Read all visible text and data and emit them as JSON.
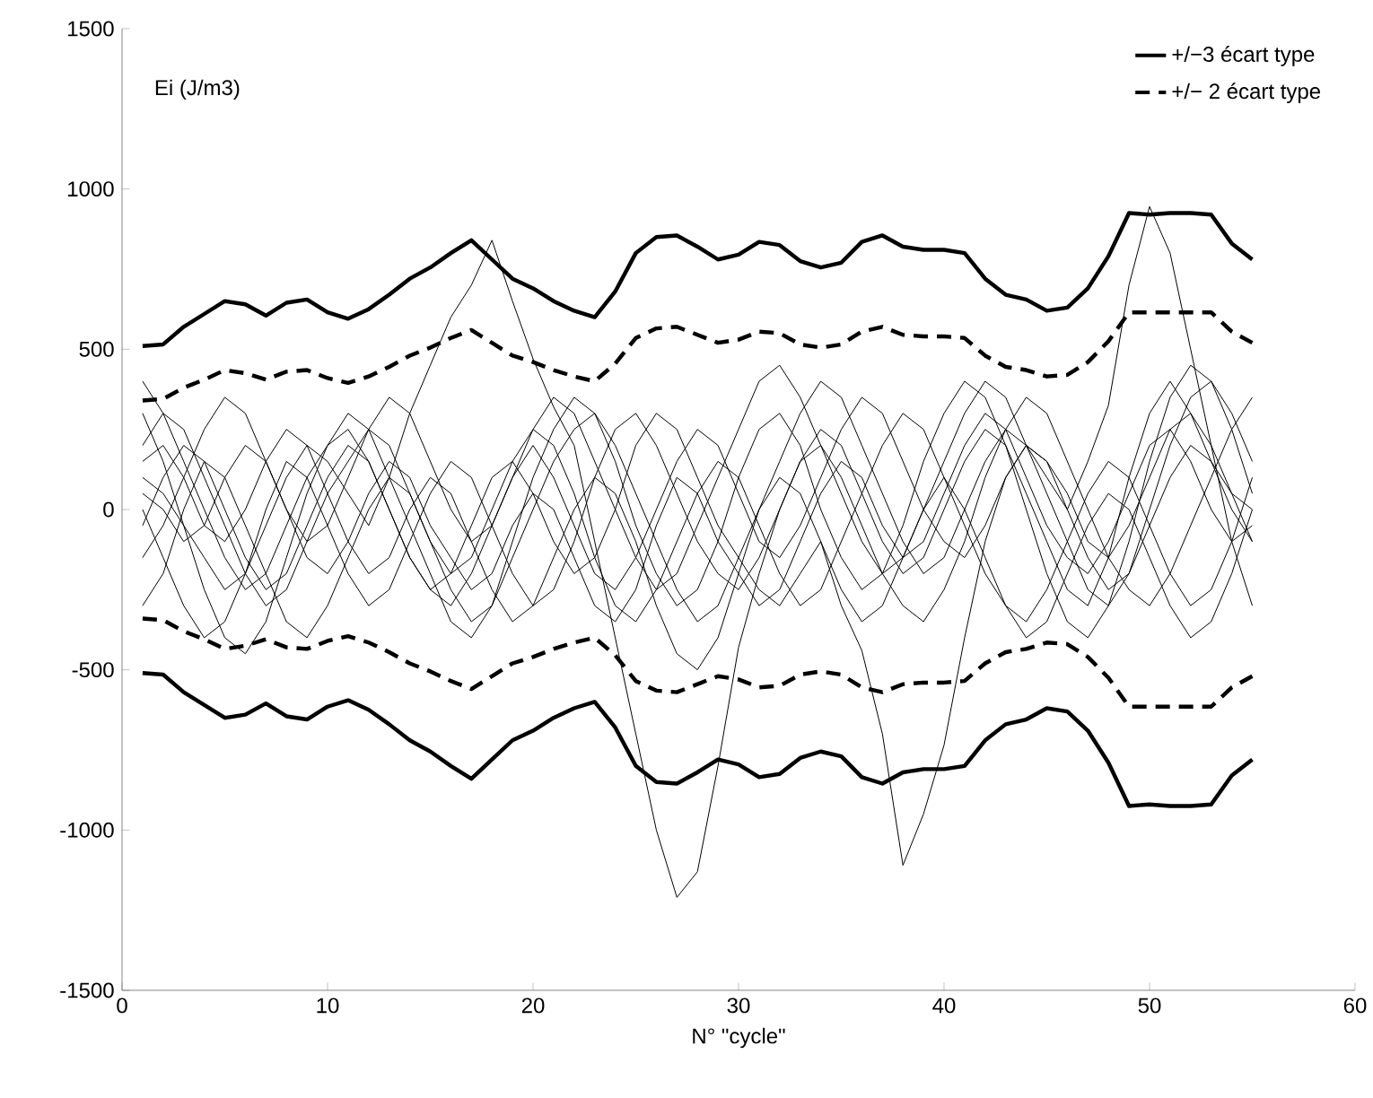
{
  "chart_data": {
    "type": "line",
    "xlabel": "N° \"cycle\"",
    "annotations": [
      "Ei (J/m3)"
    ],
    "xlim": [
      0,
      60
    ],
    "xticks": [
      0,
      10,
      20,
      30,
      40,
      50,
      60
    ],
    "ylim": [
      -1500,
      1500
    ],
    "yticks": [
      -1500,
      -1000,
      -500,
      0,
      500,
      1000,
      1500
    ],
    "legend": "top right",
    "marker": "none",
    "x": [
      1,
      2,
      3,
      4,
      5,
      6,
      7,
      8,
      9,
      10,
      11,
      12,
      13,
      14,
      15,
      16,
      17,
      18,
      19,
      20,
      21,
      22,
      23,
      24,
      25,
      26,
      27,
      28,
      29,
      30,
      31,
      32,
      33,
      34,
      35,
      36,
      37,
      38,
      39,
      40,
      41,
      42,
      43,
      44,
      45,
      46,
      47,
      48,
      49,
      50,
      51,
      52,
      53,
      54,
      55
    ],
    "series": [
      {
        "name": "+/−3 écart type",
        "color": "#000000",
        "line_style": "solid",
        "values": [
          510,
          515,
          570,
          610,
          650,
          640,
          605,
          645,
          655,
          615,
          595,
          625,
          670,
          720,
          755,
          800,
          840,
          780,
          720,
          690,
          650,
          620,
          600,
          680,
          800,
          850,
          855,
          820,
          780,
          795,
          835,
          825,
          775,
          755,
          770,
          835,
          855,
          820,
          810,
          810,
          800,
          720,
          670,
          655,
          620,
          630,
          690,
          790,
          925,
          920,
          925,
          925,
          920,
          830,
          780
        ]
      },
      {
        "color": "#000000",
        "line_style": "solid",
        "values": [
          -510,
          -515,
          -570,
          -610,
          -650,
          -640,
          -605,
          -645,
          -655,
          -615,
          -595,
          -625,
          -670,
          -720,
          -755,
          -800,
          -840,
          -780,
          -720,
          -690,
          -650,
          -620,
          -600,
          -680,
          -800,
          -850,
          -855,
          -820,
          -780,
          -795,
          -835,
          -825,
          -775,
          -755,
          -770,
          -835,
          -855,
          -820,
          -810,
          -810,
          -800,
          -720,
          -670,
          -655,
          -620,
          -630,
          -690,
          -790,
          -925,
          -920,
          -925,
          -925,
          -920,
          -830,
          -780
        ]
      },
      {
        "name": "+/− 2 écart type",
        "color": "#000000",
        "line_style": "dashed",
        "values": [
          340,
          345,
          380,
          405,
          435,
          425,
          405,
          430,
          435,
          410,
          395,
          415,
          445,
          480,
          505,
          535,
          560,
          520,
          480,
          460,
          435,
          415,
          400,
          455,
          535,
          565,
          570,
          545,
          520,
          530,
          555,
          550,
          515,
          505,
          515,
          555,
          570,
          545,
          540,
          540,
          535,
          480,
          445,
          435,
          415,
          420,
          460,
          525,
          615,
          615,
          615,
          615,
          615,
          555,
          520
        ]
      },
      {
        "color": "#000000",
        "line_style": "dashed",
        "values": [
          -340,
          -345,
          -380,
          -405,
          -435,
          -425,
          -405,
          -430,
          -435,
          -410,
          -395,
          -415,
          -445,
          -480,
          -505,
          -535,
          -560,
          -520,
          -480,
          -460,
          -435,
          -415,
          -400,
          -455,
          -535,
          -565,
          -570,
          -545,
          -520,
          -530,
          -555,
          -550,
          -515,
          -505,
          -515,
          -555,
          -570,
          -545,
          -540,
          -540,
          -535,
          -480,
          -445,
          -435,
          -415,
          -420,
          -460,
          -525,
          -615,
          -615,
          -615,
          -615,
          -615,
          -555,
          -520
        ]
      },
      {
        "color": "#000000",
        "values": [
          100,
          50,
          -50,
          -150,
          -250,
          -200,
          -50,
          100,
          200,
          150,
          50,
          -50,
          100,
          300,
          450,
          600,
          700,
          840,
          650,
          470,
          320,
          200,
          -100,
          -400,
          -700,
          -1000,
          -1210,
          -1130,
          -800,
          -430,
          -200,
          0,
          150,
          250,
          200,
          50,
          -100,
          -200,
          -150,
          0,
          150,
          250,
          200,
          50,
          -100,
          -250,
          -300,
          -150,
          100,
          300,
          400,
          300,
          150,
          0,
          -100
        ]
      },
      {
        "color": "#000000",
        "values": [
          -50,
          100,
          200,
          150,
          0,
          -150,
          -250,
          -200,
          -50,
          100,
          200,
          150,
          0,
          -150,
          -250,
          -200,
          -50,
          100,
          150,
          50,
          -100,
          -200,
          -150,
          0,
          200,
          300,
          250,
          100,
          -50,
          -150,
          -250,
          -300,
          -200,
          -100,
          -300,
          -440,
          -700,
          -1110,
          -950,
          -735,
          -400,
          -100,
          100,
          200,
          150,
          0,
          -150,
          -250,
          -200,
          -50,
          100,
          200,
          150,
          50,
          0
        ]
      },
      {
        "color": "#000000",
        "values": [
          200,
          300,
          250,
          100,
          -50,
          -200,
          -300,
          -250,
          -100,
          50,
          150,
          250,
          200,
          50,
          -100,
          -250,
          -350,
          -300,
          -150,
          0,
          150,
          250,
          300,
          200,
          50,
          -100,
          -250,
          -350,
          -300,
          -150,
          0,
          150,
          300,
          400,
          350,
          200,
          50,
          -100,
          -200,
          -150,
          0,
          150,
          250,
          200,
          100,
          0,
          150,
          325,
          700,
          945,
          800,
          500,
          200,
          -100,
          -300
        ]
      },
      {
        "color": "#000000",
        "values": [
          -300,
          -200,
          0,
          150,
          100,
          -50,
          -200,
          -350,
          -400,
          -300,
          -150,
          0,
          100,
          50,
          -100,
          -200,
          -150,
          0,
          150,
          250,
          200,
          50,
          -150,
          -300,
          -350,
          -250,
          -100,
          50,
          150,
          100,
          -50,
          -200,
          -300,
          -250,
          -100,
          50,
          200,
          300,
          250,
          100,
          -50,
          -200,
          -300,
          -350,
          -250,
          -100,
          50,
          150,
          100,
          -50,
          -200,
          -300,
          -250,
          -100,
          100
        ]
      },
      {
        "color": "#000000",
        "values": [
          400,
          300,
          150,
          0,
          -150,
          -250,
          -200,
          -50,
          100,
          200,
          250,
          150,
          0,
          -150,
          -250,
          -300,
          -200,
          -50,
          100,
          250,
          350,
          300,
          150,
          0,
          -150,
          -250,
          -200,
          -50,
          100,
          250,
          400,
          450,
          350,
          200,
          50,
          -100,
          -200,
          -150,
          0,
          150,
          300,
          400,
          350,
          200,
          50,
          -100,
          -250,
          -300,
          -200,
          0,
          200,
          350,
          400,
          300,
          150
        ]
      },
      {
        "color": "#000000",
        "values": [
          0,
          -150,
          -300,
          -400,
          -350,
          -200,
          0,
          150,
          100,
          -50,
          -200,
          -300,
          -250,
          -100,
          50,
          150,
          100,
          -50,
          -200,
          -300,
          -250,
          -100,
          100,
          250,
          300,
          200,
          50,
          -100,
          -200,
          -250,
          -150,
          0,
          150,
          200,
          100,
          -50,
          -200,
          -300,
          -350,
          -250,
          -100,
          100,
          250,
          350,
          300,
          150,
          0,
          -150,
          -250,
          -300,
          -200,
          -50,
          100,
          250,
          350
        ]
      },
      {
        "color": "#000000",
        "values": [
          150,
          200,
          100,
          -50,
          -100,
          0,
          150,
          250,
          200,
          50,
          -100,
          -200,
          -150,
          0,
          100,
          50,
          -100,
          -250,
          -350,
          -300,
          -150,
          0,
          100,
          50,
          -100,
          -300,
          -450,
          -500,
          -400,
          -200,
          0,
          100,
          50,
          -100,
          -250,
          -350,
          -300,
          -150,
          0,
          100,
          0,
          -150,
          -300,
          -400,
          -350,
          -200,
          -50,
          50,
          0,
          -150,
          -300,
          -400,
          -350,
          -200,
          0
        ]
      },
      {
        "color": "#000000",
        "values": [
          -150,
          -50,
          100,
          250,
          350,
          300,
          150,
          0,
          -100,
          -50,
          100,
          250,
          350,
          300,
          150,
          0,
          -100,
          -50,
          100,
          200,
          100,
          -50,
          -200,
          -250,
          -150,
          0,
          150,
          250,
          200,
          50,
          -100,
          -150,
          -50,
          100,
          250,
          350,
          300,
          150,
          0,
          -100,
          -150,
          -50,
          100,
          200,
          150,
          50,
          -100,
          -150,
          -50,
          100,
          250,
          300,
          200,
          50,
          -100
        ]
      },
      {
        "color": "#000000",
        "values": [
          300,
          150,
          -50,
          -250,
          -400,
          -450,
          -350,
          -150,
          50,
          200,
          300,
          250,
          100,
          -50,
          -200,
          -350,
          -400,
          -300,
          -100,
          100,
          250,
          350,
          300,
          150,
          -50,
          -200,
          -300,
          -250,
          -100,
          100,
          250,
          300,
          200,
          0,
          -150,
          -250,
          -200,
          -50,
          150,
          300,
          400,
          350,
          200,
          0,
          -200,
          -350,
          -400,
          -300,
          -100,
          150,
          350,
          450,
          400,
          250,
          50
        ]
      },
      {
        "color": "#000000",
        "values": [
          50,
          0,
          -100,
          -50,
          100,
          200,
          150,
          0,
          -150,
          -200,
          -100,
          50,
          150,
          100,
          -50,
          -150,
          -250,
          -200,
          -50,
          50,
          0,
          -150,
          -300,
          -350,
          -250,
          -50,
          100,
          50,
          -100,
          -200,
          -300,
          -250,
          -100,
          50,
          150,
          100,
          -50,
          -150,
          -100,
          50,
          200,
          300,
          250,
          100,
          -50,
          -150,
          -200,
          -100,
          50,
          200,
          250,
          150,
          0,
          -100,
          -50
        ]
      }
    ]
  }
}
